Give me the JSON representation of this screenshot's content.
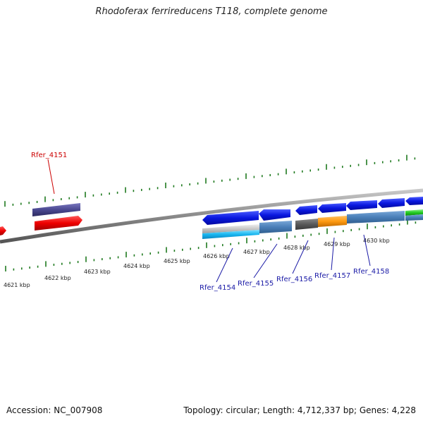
{
  "title": "Rhodoferax ferrireducens T118, complete genome",
  "footer": {
    "accession": "Accession: NC_007908",
    "summary": "Topology: circular; Length: 4,712,337 bp; Genes: 4,228"
  },
  "colors": {
    "tick": "#1f7a1f",
    "highlight_label": "#cc0000",
    "gene_label": "#1a1aa6",
    "backbone": "#8a8a8a"
  },
  "kbp_labels": [
    "4621 kbp",
    "4622 kbp",
    "4623 kbp",
    "4624 kbp",
    "4625 kbp",
    "4626 kbp",
    "4627 kbp",
    "4628 kbp",
    "4629 kbp",
    "4630 kbp"
  ],
  "gene_labels": [
    {
      "text": "Rfer_4151",
      "color": "#cc0000"
    },
    {
      "text": "Rfer_4154",
      "color": "#1a1aa6"
    },
    {
      "text": "Rfer_4155",
      "color": "#1a1aa6"
    },
    {
      "text": "Rfer_4156",
      "color": "#1a1aa6"
    },
    {
      "text": "Rfer_4157",
      "color": "#1a1aa6"
    },
    {
      "text": "Rfer_4158",
      "color": "#1a1aa6"
    }
  ]
}
